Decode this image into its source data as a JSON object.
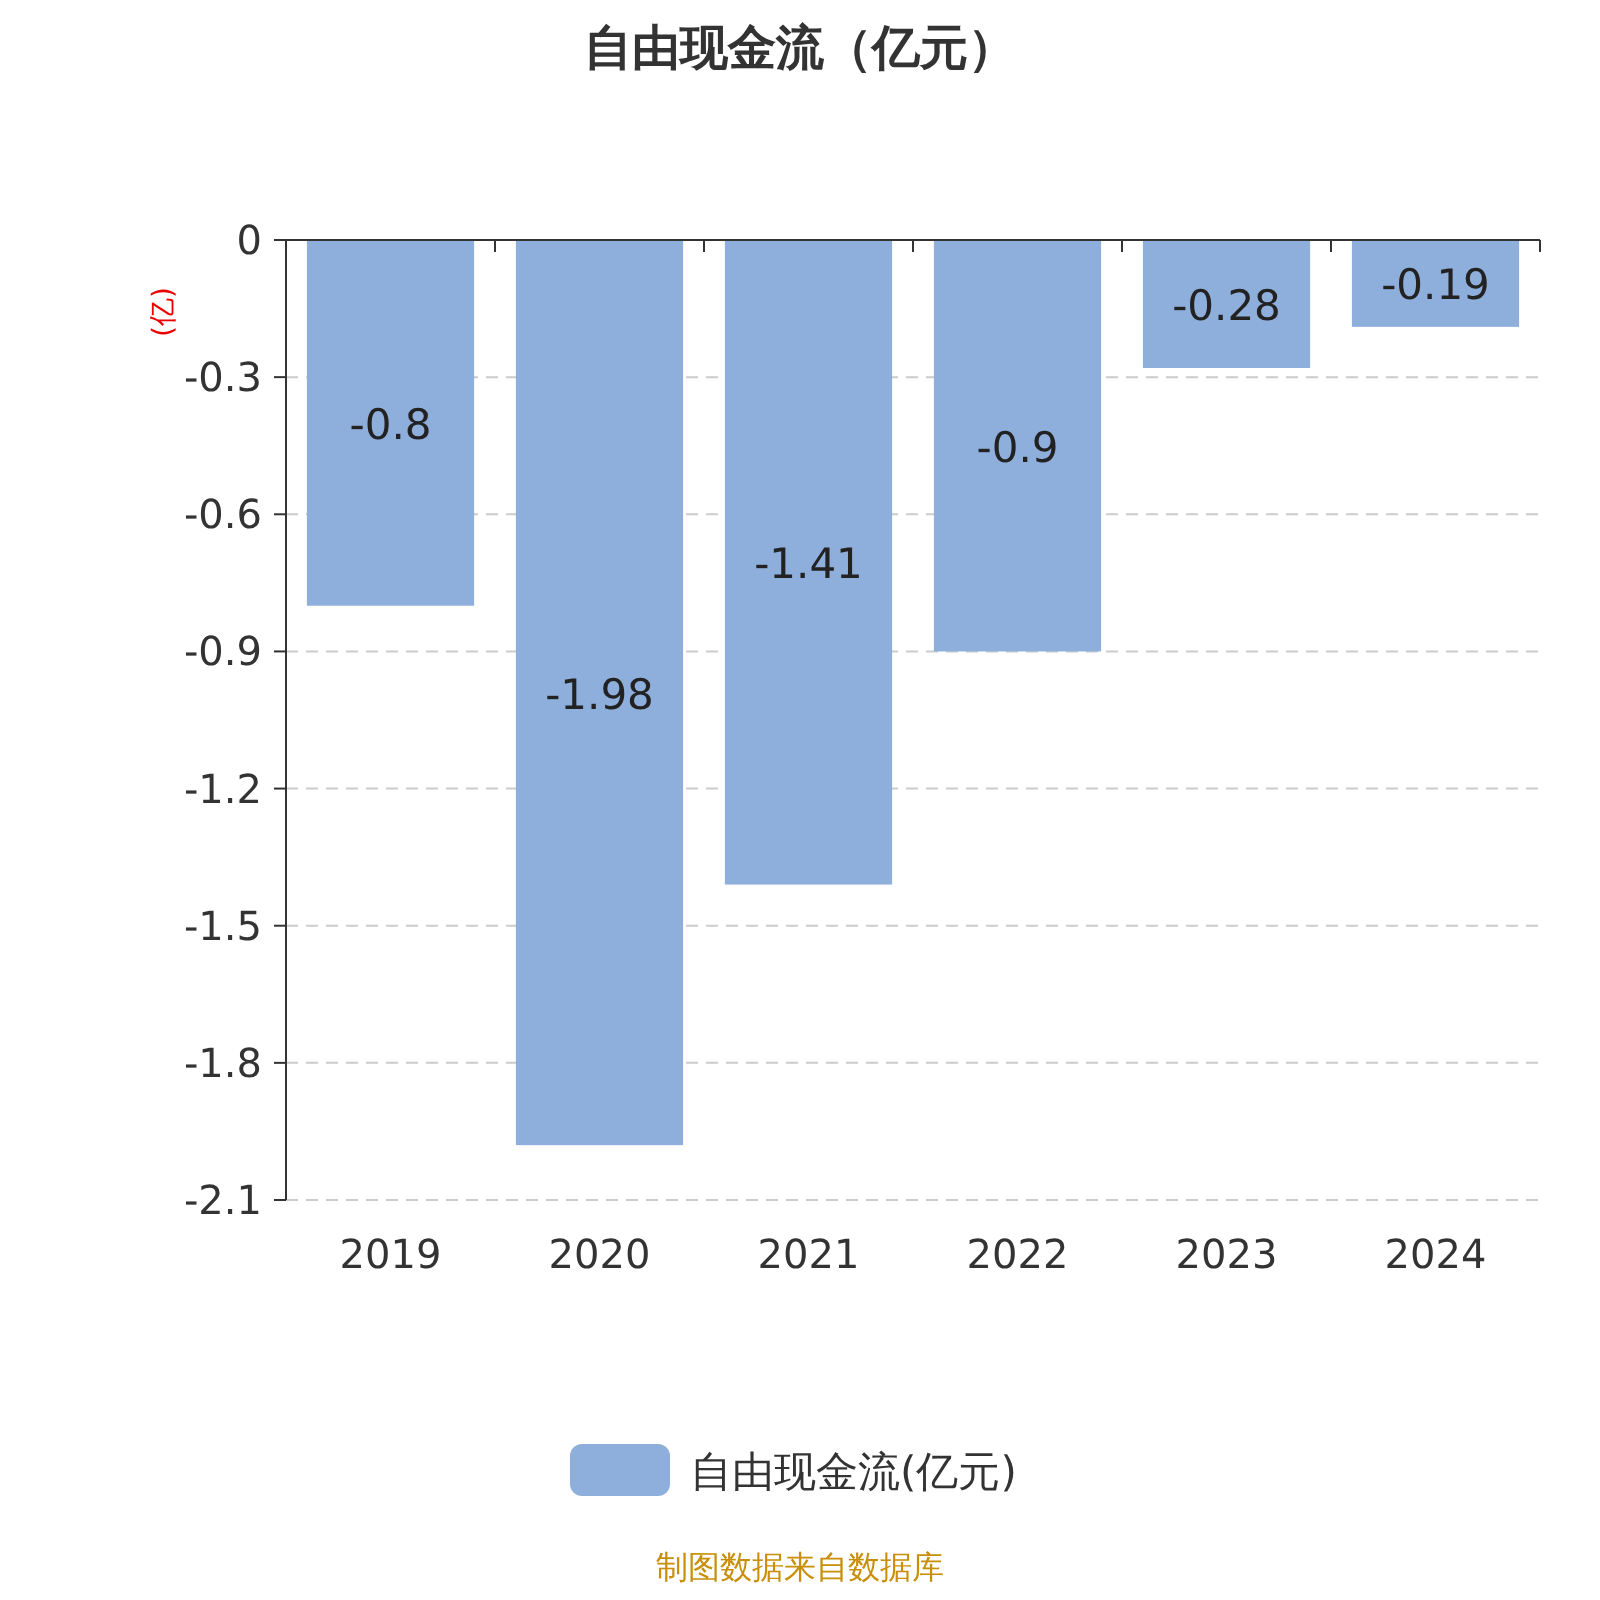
{
  "chart_data": {
    "type": "bar",
    "title": "自由现金流（亿元）",
    "ylabel": "(亿)",
    "categories": [
      "2019",
      "2020",
      "2021",
      "2022",
      "2023",
      "2024"
    ],
    "series": [
      {
        "name": "自由现金流(亿元)",
        "color": "#8eaedb",
        "values": [
          -0.8,
          -1.98,
          -1.41,
          -0.9,
          -0.28,
          -0.19
        ]
      }
    ],
    "ylim": [
      -2.1,
      0
    ],
    "yticks": [
      0,
      -0.3,
      -0.6,
      -0.9,
      -1.2,
      -1.5,
      -1.8,
      -2.1
    ],
    "grid": "y",
    "legend": "bottom",
    "data_labels": true,
    "annotations": [
      "制图数据来自数据库"
    ]
  }
}
